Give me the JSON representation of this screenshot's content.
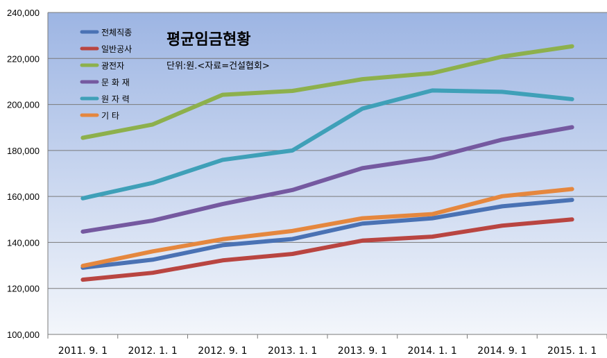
{
  "chart_data": {
    "type": "line",
    "title": "평균임금현황",
    "subtitle": "단위:원.<자료=건설협회>",
    "categories": [
      "2011. 9. 1",
      "2012. 1. 1",
      "2012. 9. 1",
      "2013. 1. 1",
      "2013. 9. 1",
      "2014. 1. 1",
      "2014. 9. 1",
      "2015. 1. 1"
    ],
    "ylim": [
      100000,
      240000
    ],
    "yticks": [
      "100,000",
      "120,000",
      "140,000",
      "160,000",
      "180,000",
      "200,000",
      "220,000",
      "240,000"
    ],
    "ytick_values": [
      100000,
      120000,
      140000,
      160000,
      180000,
      200000,
      220000,
      240000
    ],
    "grid": true,
    "legend_position": "top-left",
    "series": [
      {
        "name": "전체직종",
        "color": "#4a72b4",
        "values": [
          129000,
          132500,
          138800,
          141500,
          148200,
          150500,
          155700,
          158500
        ]
      },
      {
        "name": "일반공사",
        "color": "#b94541",
        "values": [
          123800,
          126800,
          132200,
          135000,
          140800,
          142500,
          147300,
          150000
        ]
      },
      {
        "name": "광전자",
        "color": "#8db04c",
        "values": [
          185500,
          191300,
          204200,
          205900,
          211000,
          213600,
          220800,
          225300
        ]
      },
      {
        "name": "문 화 재",
        "color": "#7559a0",
        "values": [
          144700,
          149500,
          156700,
          162800,
          172300,
          176800,
          184700,
          190100
        ]
      },
      {
        "name": "원 자 력",
        "color": "#3fa0b8",
        "values": [
          159200,
          165900,
          175900,
          180000,
          198200,
          206100,
          205500,
          202300
        ]
      },
      {
        "name": "기 타",
        "color": "#e5873e",
        "values": [
          129800,
          136100,
          141400,
          145000,
          150500,
          152300,
          160100,
          163200
        ]
      }
    ]
  }
}
